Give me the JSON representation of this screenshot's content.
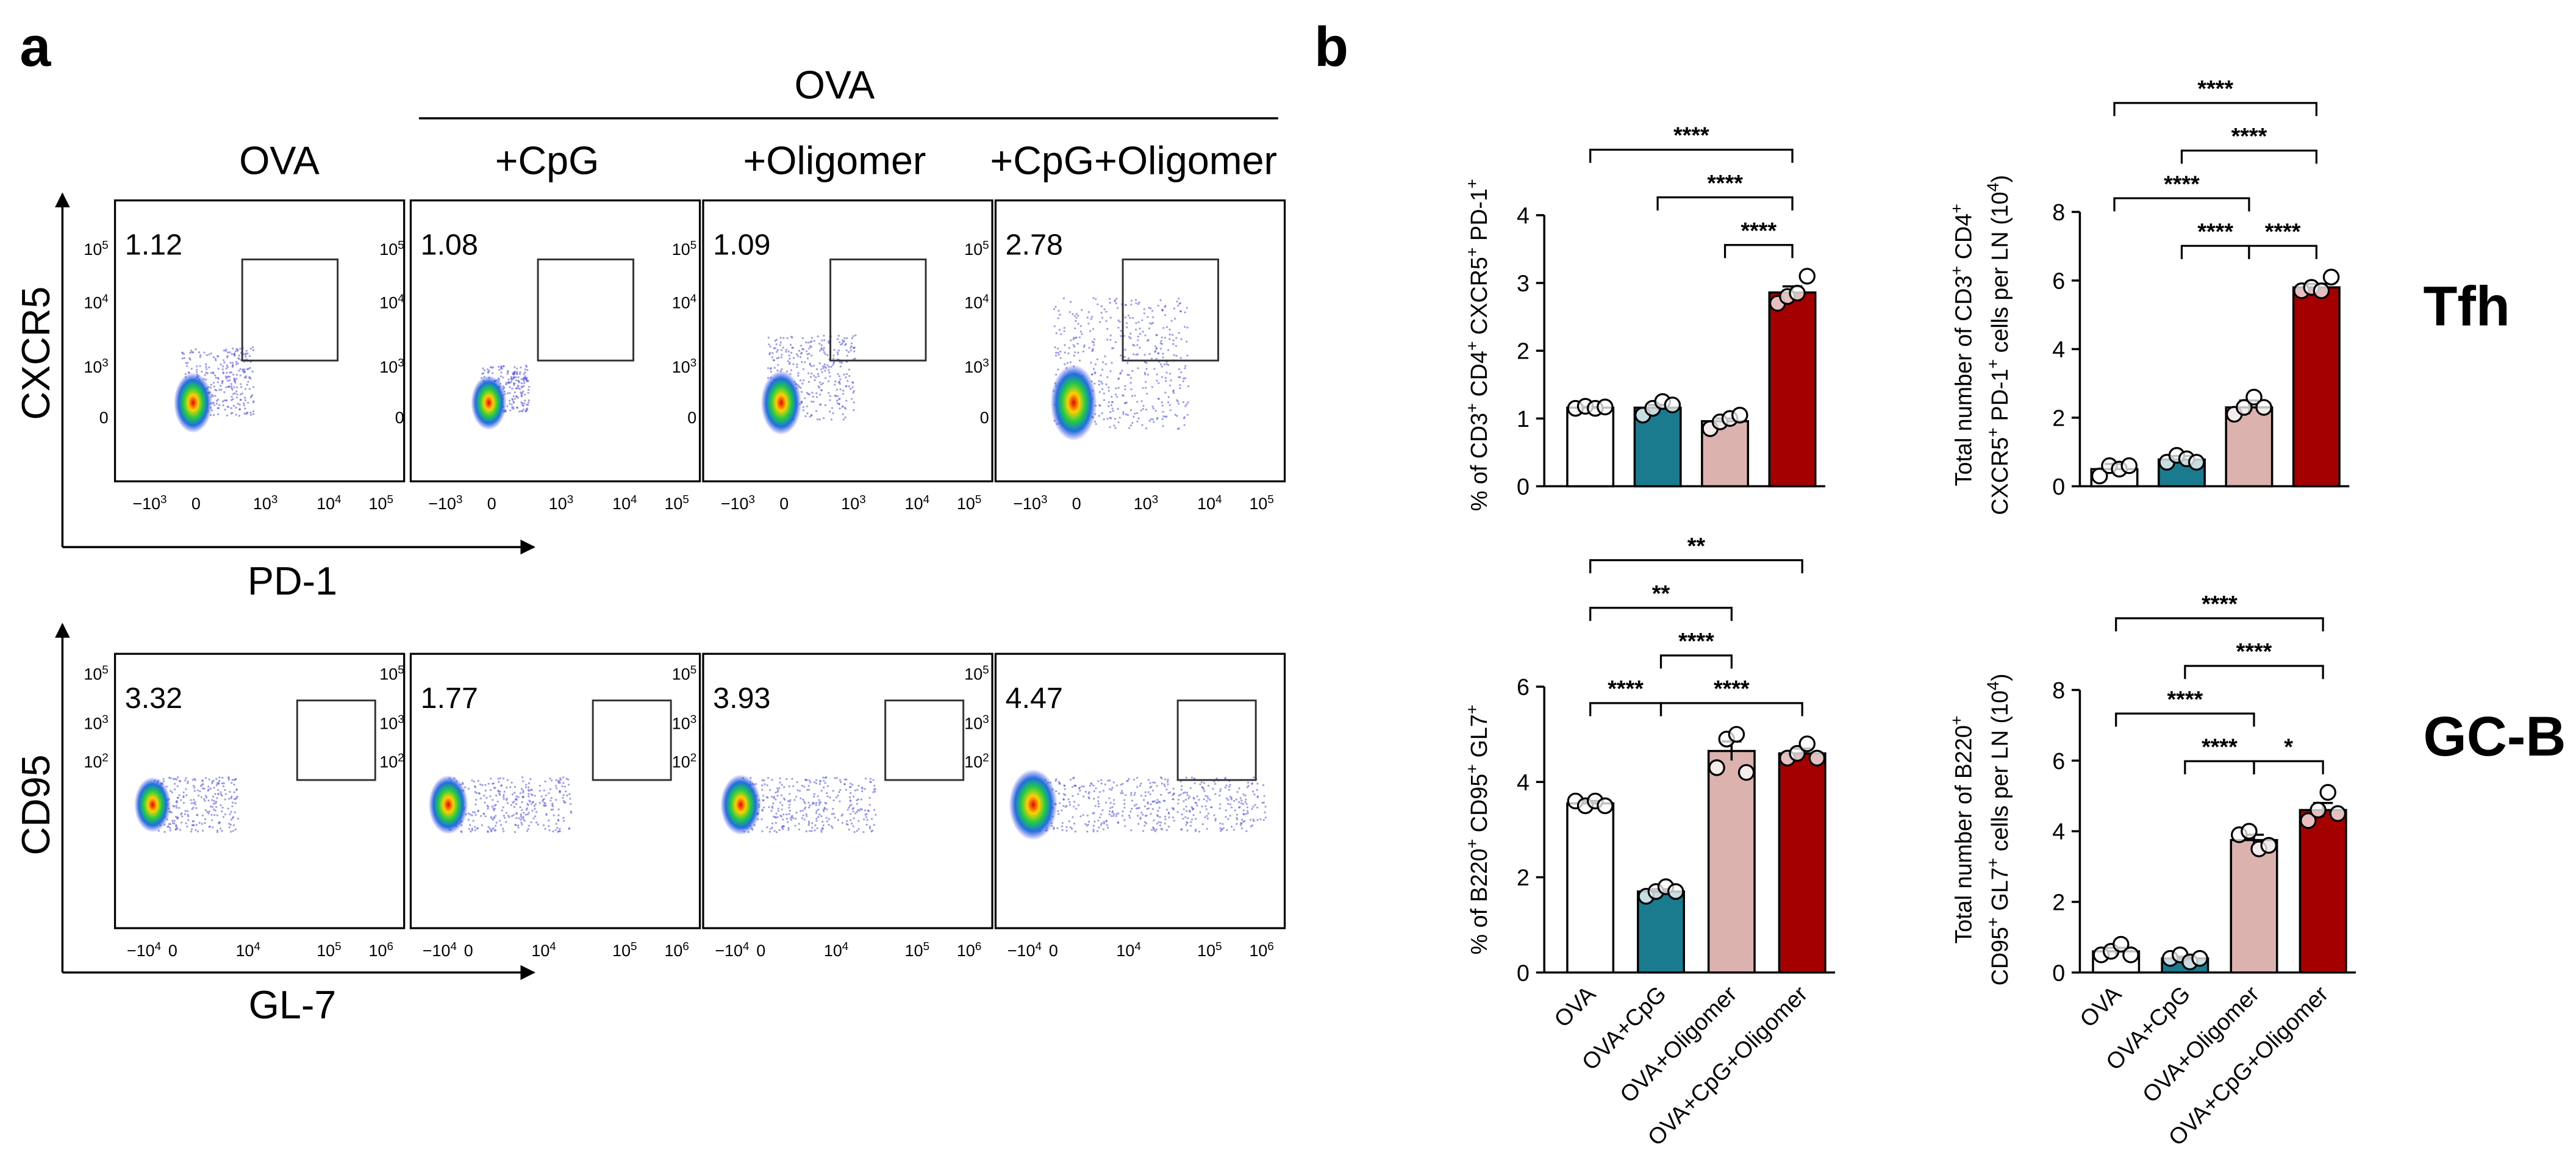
{
  "panel_labels": [
    "a",
    "b"
  ],
  "flow": {
    "group_header": "OVA",
    "columns": [
      "OVA",
      "+CpG",
      "+Oligomer",
      "+CpG+Oligomer"
    ],
    "rows": [
      {
        "y_label": "CXCR5",
        "x_label": "PD-1",
        "gate_percentages": [
          1.12,
          1.08,
          1.09,
          2.78
        ],
        "y_tick_labels": [
          [
            "10",
            "5"
          ],
          [
            "10",
            "4"
          ],
          [
            "10",
            "3"
          ],
          [
            "0"
          ]
        ],
        "x_tick_labels": [
          [
            "−10",
            "3"
          ],
          [
            "0"
          ],
          [
            "10",
            "3"
          ],
          [
            "10",
            "4"
          ],
          [
            "10",
            "5"
          ]
        ]
      },
      {
        "y_label": "CD95",
        "x_label": "GL-7",
        "gate_percentages": [
          3.32,
          1.77,
          3.93,
          4.47
        ],
        "y_tick_labels": [
          [
            "10",
            "5"
          ],
          [
            "10",
            "3"
          ],
          [
            "10",
            "2"
          ]
        ],
        "x_tick_labels": [
          [
            "−10",
            "4"
          ],
          [
            "0"
          ],
          [
            "10",
            "4"
          ],
          [
            "10",
            "5"
          ],
          [
            "10",
            "6"
          ]
        ]
      }
    ]
  },
  "row_labels": [
    "Tfh",
    "GC-B"
  ],
  "chart_data": [
    {
      "type": "bar",
      "ylabel": [
        [
          "% of CD3",
          "+",
          " CD4",
          "+",
          " CXCR5",
          "+",
          " PD-1",
          "+"
        ]
      ],
      "ylim": [
        0,
        4
      ],
      "yticks": [
        0,
        1,
        2,
        3,
        4
      ],
      "colors": [
        "#ffffff",
        "#1a7a8e",
        "#dcb2ae",
        "#a50000"
      ],
      "values": [
        1.16,
        1.16,
        0.96,
        2.86
      ],
      "errors": [
        0.01,
        0.04,
        0.04,
        0.09
      ],
      "points": [
        [
          1.15,
          1.18,
          1.15,
          1.17
        ],
        [
          1.05,
          1.15,
          1.25,
          1.2
        ],
        [
          0.85,
          0.95,
          1.0,
          1.05
        ],
        [
          2.7,
          2.8,
          2.85,
          3.1
        ]
      ],
      "comparisons": [
        {
          "from": 2,
          "to": 3,
          "label": "****"
        },
        {
          "from": 1,
          "to": 3,
          "label": "****"
        },
        {
          "from": 0,
          "to": 3,
          "label": "****"
        }
      ]
    },
    {
      "type": "bar",
      "ylabel": [
        [
          "Total number of CD3",
          "+",
          " CD4",
          "+"
        ],
        [
          "CXCR5",
          "+",
          " PD-1",
          "+",
          " cells per LN (10",
          "4",
          ")"
        ]
      ],
      "ylim": [
        0,
        8
      ],
      "yticks": [
        0,
        2,
        4,
        6,
        8
      ],
      "colors": [
        "#ffffff",
        "#1a7a8e",
        "#dcb2ae",
        "#a50000"
      ],
      "values": [
        0.5,
        0.78,
        2.3,
        5.8
      ],
      "errors": [
        0.15,
        0.1,
        0.2,
        0.1
      ],
      "points": [
        [
          0.3,
          0.6,
          0.5,
          0.6
        ],
        [
          0.7,
          0.9,
          0.8,
          0.7
        ],
        [
          2.1,
          2.3,
          2.6,
          2.3
        ],
        [
          5.7,
          5.8,
          5.7,
          6.1
        ]
      ],
      "comparisons": [
        {
          "from": 1,
          "to": 2,
          "label": "****"
        },
        {
          "from": 0,
          "to": 2,
          "label": "****"
        },
        {
          "from": 2,
          "to": 3,
          "label": "****"
        },
        {
          "from": 1,
          "to": 3,
          "label": "****"
        },
        {
          "from": 0,
          "to": 3,
          "label": "****"
        }
      ]
    },
    {
      "type": "bar",
      "ylabel": [
        [
          "% of B220",
          "+",
          " CD95",
          "+",
          " GL7",
          "+"
        ]
      ],
      "categories": [
        "OVA",
        "OVA+CpG",
        "OVA+Oligomer",
        "OVA+CpG+Oligomer"
      ],
      "ylim": [
        0,
        6
      ],
      "yticks": [
        0,
        2,
        4,
        6
      ],
      "colors": [
        "#ffffff",
        "#1a7a8e",
        "#dcb2ae",
        "#a50000"
      ],
      "values": [
        3.55,
        1.7,
        4.65,
        4.6
      ],
      "errors": [
        0.05,
        0.05,
        0.2,
        0.1
      ],
      "points": [
        [
          3.6,
          3.5,
          3.6,
          3.5
        ],
        [
          1.6,
          1.7,
          1.8,
          1.7
        ],
        [
          4.3,
          4.9,
          5.0,
          4.2
        ],
        [
          4.5,
          4.6,
          4.8,
          4.5
        ]
      ],
      "comparisons": [
        {
          "from": 0,
          "to": 1,
          "label": "****"
        },
        {
          "from": 1,
          "to": 3,
          "label": "****"
        },
        {
          "from": 1,
          "to": 2,
          "label": "****"
        },
        {
          "from": 0,
          "to": 2,
          "label": "**"
        },
        {
          "from": 0,
          "to": 3,
          "label": "**"
        }
      ]
    },
    {
      "type": "bar",
      "ylabel": [
        [
          "Total number of B220",
          "+"
        ],
        [
          "CD95",
          "+",
          " GL7",
          "+",
          " cells per LN (10",
          "4",
          ")"
        ]
      ],
      "categories": [
        "OVA",
        "OVA+CpG",
        "OVA+Oligomer",
        "OVA+CpG+Oligomer"
      ],
      "ylim": [
        0,
        8
      ],
      "yticks": [
        0,
        2,
        4,
        6,
        8
      ],
      "colors": [
        "#ffffff",
        "#1a7a8e",
        "#dcb2ae",
        "#a50000"
      ],
      "values": [
        0.6,
        0.4,
        3.75,
        4.6
      ],
      "errors": [
        0.1,
        0.05,
        0.15,
        0.2
      ],
      "points": [
        [
          0.5,
          0.6,
          0.8,
          0.5
        ],
        [
          0.4,
          0.5,
          0.3,
          0.4
        ],
        [
          3.9,
          4.0,
          3.5,
          3.6
        ],
        [
          4.3,
          4.6,
          5.1,
          4.5
        ]
      ],
      "comparisons": [
        {
          "from": 1,
          "to": 2,
          "label": "****"
        },
        {
          "from": 2,
          "to": 3,
          "label": "*"
        },
        {
          "from": 0,
          "to": 2,
          "label": "****"
        },
        {
          "from": 1,
          "to": 3,
          "label": "****"
        },
        {
          "from": 0,
          "to": 3,
          "label": "****"
        }
      ]
    }
  ]
}
